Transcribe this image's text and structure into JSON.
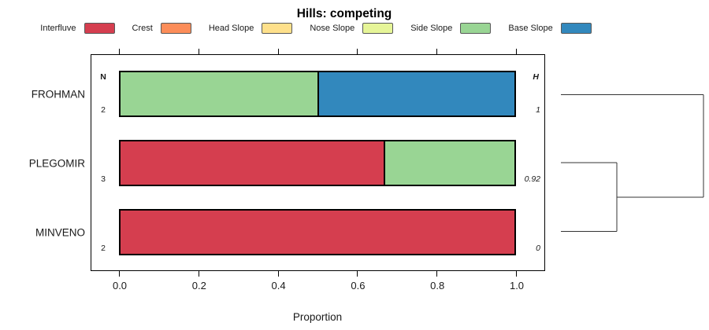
{
  "title": "Hills: competing",
  "legend": {
    "items": [
      {
        "label": "Interfluve",
        "color": "#d53e4f"
      },
      {
        "label": "Crest",
        "color": "#fc8d59"
      },
      {
        "label": "Head Slope",
        "color": "#fee08b"
      },
      {
        "label": "Nose Slope",
        "color": "#e6f598"
      },
      {
        "label": "Side Slope",
        "color": "#99d594"
      },
      {
        "label": "Base Slope",
        "color": "#3288bd"
      }
    ]
  },
  "chart_data": {
    "type": "bar",
    "orientation": "horizontal-stacked",
    "title": "Hills: competing",
    "xlabel": "Proportion",
    "xlim": [
      0,
      1
    ],
    "x_ticks": [
      0.0,
      0.2,
      0.4,
      0.6,
      0.8,
      1.0
    ],
    "x_tick_labels": [
      "0.0",
      "0.2",
      "0.4",
      "0.6",
      "0.8",
      "1.0"
    ],
    "grid": false,
    "legend_position": "top",
    "categories": [
      "Interfluve",
      "Crest",
      "Head Slope",
      "Nose Slope",
      "Side Slope",
      "Base Slope"
    ],
    "category_colors": {
      "Interfluve": "#d53e4f",
      "Crest": "#fc8d59",
      "Head Slope": "#fee08b",
      "Nose Slope": "#e6f598",
      "Side Slope": "#99d594",
      "Base Slope": "#3288bd"
    },
    "left_column_header": "N",
    "right_column_header": "H",
    "rows": [
      {
        "label": "FROHMAN",
        "n": "2",
        "h": "1",
        "segments": [
          {
            "category": "Side Slope",
            "value": 0.5
          },
          {
            "category": "Base Slope",
            "value": 0.5
          }
        ]
      },
      {
        "label": "PLEGOMIR",
        "n": "3",
        "h": "0.92",
        "segments": [
          {
            "category": "Interfluve",
            "value": 0.667
          },
          {
            "category": "Side Slope",
            "value": 0.333
          }
        ]
      },
      {
        "label": "MINVENO",
        "n": "2",
        "h": "0",
        "segments": [
          {
            "category": "Interfluve",
            "value": 1.0
          }
        ]
      }
    ],
    "dendrogram": {
      "side": "right",
      "merges": [
        [
          "PLEGOMIR",
          "MINVENO"
        ],
        [
          "PLEGOMIR+MINVENO",
          "FROHMAN"
        ]
      ]
    }
  }
}
